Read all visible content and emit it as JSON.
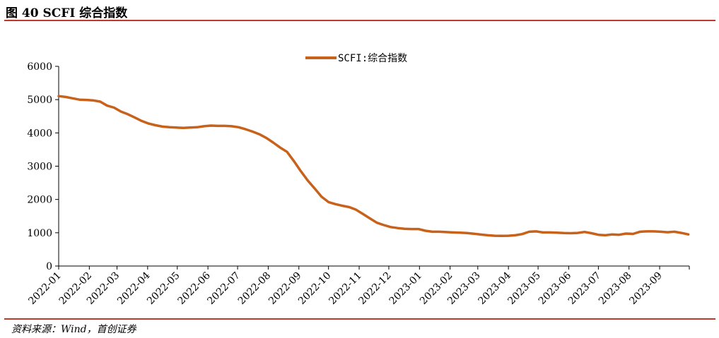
{
  "header": {
    "title": "图 40 SCFI 综合指数"
  },
  "footer": {
    "source": "资料来源：Wind，首创证券"
  },
  "colors": {
    "rule": "#c0392b",
    "series": "#c8621a",
    "axis": "#000000"
  },
  "chart_data": {
    "type": "line",
    "title": "",
    "xlabel": "",
    "ylabel": "",
    "ylim": [
      0,
      6000
    ],
    "yticks": [
      0,
      1000,
      2000,
      3000,
      4000,
      5000,
      6000
    ],
    "grid": false,
    "legend": "top-center",
    "x_tick_labels": [
      "2022-01",
      "2022-02",
      "2022-03",
      "2022-04",
      "2022-05",
      "2022-06",
      "2022-07",
      "2022-08",
      "2022-09",
      "2022-10",
      "2022-11",
      "2022-12",
      "2023-01",
      "2023-02",
      "2023-03",
      "2023-04",
      "2023-05",
      "2023-06",
      "2023-07",
      "2023-08",
      "2023-09"
    ],
    "series": [
      {
        "name": "SCFI:综合指数",
        "points": [
          [
            "2022-01-01",
            5105
          ],
          [
            "2022-01-08",
            5080
          ],
          [
            "2022-01-15",
            5040
          ],
          [
            "2022-01-22",
            5000
          ],
          [
            "2022-01-29",
            4990
          ],
          [
            "2022-02-05",
            4975
          ],
          [
            "2022-02-12",
            4940
          ],
          [
            "2022-02-19",
            4820
          ],
          [
            "2022-02-26",
            4760
          ],
          [
            "2022-03-05",
            4640
          ],
          [
            "2022-03-12",
            4560
          ],
          [
            "2022-03-19",
            4460
          ],
          [
            "2022-03-26",
            4360
          ],
          [
            "2022-04-02",
            4280
          ],
          [
            "2022-04-09",
            4230
          ],
          [
            "2022-04-16",
            4190
          ],
          [
            "2022-04-23",
            4170
          ],
          [
            "2022-04-30",
            4160
          ],
          [
            "2022-05-07",
            4150
          ],
          [
            "2022-05-14",
            4160
          ],
          [
            "2022-05-21",
            4170
          ],
          [
            "2022-05-28",
            4200
          ],
          [
            "2022-06-04",
            4220
          ],
          [
            "2022-06-11",
            4210
          ],
          [
            "2022-06-18",
            4210
          ],
          [
            "2022-06-25",
            4200
          ],
          [
            "2022-07-02",
            4170
          ],
          [
            "2022-07-09",
            4110
          ],
          [
            "2022-07-16",
            4040
          ],
          [
            "2022-07-23",
            3960
          ],
          [
            "2022-07-30",
            3850
          ],
          [
            "2022-08-06",
            3710
          ],
          [
            "2022-08-13",
            3560
          ],
          [
            "2022-08-20",
            3430
          ],
          [
            "2022-08-27",
            3150
          ],
          [
            "2022-09-03",
            2850
          ],
          [
            "2022-09-10",
            2570
          ],
          [
            "2022-09-17",
            2330
          ],
          [
            "2022-09-24",
            2080
          ],
          [
            "2022-10-01",
            1920
          ],
          [
            "2022-10-08",
            1860
          ],
          [
            "2022-10-15",
            1810
          ],
          [
            "2022-10-22",
            1770
          ],
          [
            "2022-10-29",
            1690
          ],
          [
            "2022-11-05",
            1560
          ],
          [
            "2022-11-12",
            1430
          ],
          [
            "2022-11-19",
            1300
          ],
          [
            "2022-11-26",
            1230
          ],
          [
            "2022-12-03",
            1170
          ],
          [
            "2022-12-10",
            1140
          ],
          [
            "2022-12-17",
            1120
          ],
          [
            "2022-12-24",
            1110
          ],
          [
            "2022-12-31",
            1110
          ],
          [
            "2023-01-07",
            1060
          ],
          [
            "2023-01-14",
            1030
          ],
          [
            "2023-01-21",
            1030
          ],
          [
            "2023-01-28",
            1020
          ],
          [
            "2023-02-04",
            1010
          ],
          [
            "2023-02-11",
            1000
          ],
          [
            "2023-02-18",
            990
          ],
          [
            "2023-02-25",
            970
          ],
          [
            "2023-03-04",
            945
          ],
          [
            "2023-03-11",
            925
          ],
          [
            "2023-03-18",
            910
          ],
          [
            "2023-03-25",
            905
          ],
          [
            "2023-04-01",
            910
          ],
          [
            "2023-04-08",
            925
          ],
          [
            "2023-04-15",
            960
          ],
          [
            "2023-04-22",
            1030
          ],
          [
            "2023-04-29",
            1040
          ],
          [
            "2023-05-06",
            1010
          ],
          [
            "2023-05-13",
            1010
          ],
          [
            "2023-05-20",
            1000
          ],
          [
            "2023-05-27",
            990
          ],
          [
            "2023-06-03",
            985
          ],
          [
            "2023-06-10",
            995
          ],
          [
            "2023-06-17",
            1025
          ],
          [
            "2023-06-24",
            985
          ],
          [
            "2023-07-01",
            940
          ],
          [
            "2023-07-08",
            925
          ],
          [
            "2023-07-15",
            950
          ],
          [
            "2023-07-22",
            940
          ],
          [
            "2023-07-29",
            975
          ],
          [
            "2023-08-05",
            965
          ],
          [
            "2023-08-12",
            1030
          ],
          [
            "2023-08-19",
            1040
          ],
          [
            "2023-08-26",
            1040
          ],
          [
            "2023-09-02",
            1030
          ],
          [
            "2023-09-09",
            1015
          ],
          [
            "2023-09-16",
            1030
          ],
          [
            "2023-09-23",
            995
          ],
          [
            "2023-09-30",
            950
          ]
        ]
      }
    ]
  }
}
